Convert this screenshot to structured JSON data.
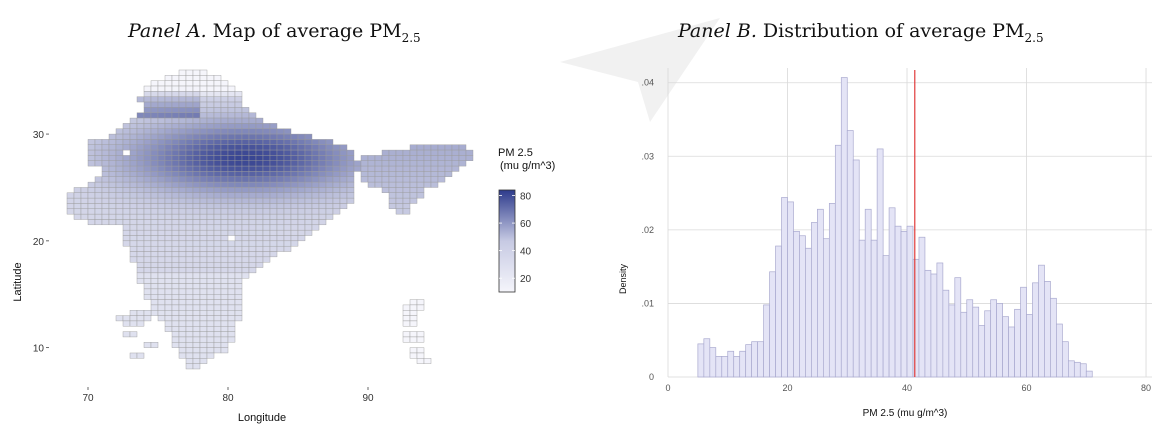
{
  "panel_a": {
    "title_italic": "Panel A.",
    "title_main": "Map of average PM",
    "title_sub": "2.5"
  },
  "panel_b": {
    "title_italic": "Panel B.",
    "title_main": "Distribution of average PM",
    "title_sub": "2.5"
  },
  "colors": {
    "map_low": "#f5f5fb",
    "map_high": "#2e3b8c",
    "map_mid": "#c7cae3",
    "hist_fill": "#e4e4f6",
    "hist_stroke": "#a9a9cf",
    "mean_line": "#e03a3a",
    "grid": "#d9d9d9"
  },
  "chart_data": [
    {
      "type": "heatmap",
      "xlabel": "Longitude",
      "ylabel": "Latitude",
      "xticks": [
        70,
        80,
        90
      ],
      "yticks": [
        10,
        20,
        30
      ],
      "xlim": [
        68,
        97
      ],
      "ylim": [
        6.5,
        36
      ],
      "legend": {
        "title_line1": "PM 2.5",
        "title_line2": "(mu g/m^3)",
        "ticks": [
          20,
          40,
          60,
          80
        ],
        "range": [
          10,
          84
        ],
        "placement": "right"
      },
      "grid": false
    },
    {
      "type": "bar",
      "xlabel": "PM 2.5 (mu g/m^3)",
      "ylabel": "Density",
      "xticks": [
        0,
        20,
        40,
        60,
        80
      ],
      "yticks": [
        0,
        0.01,
        0.02,
        0.03,
        0.04
      ],
      "ytick_labels": [
        "0",
        ".01",
        ".02",
        ".03",
        ".04"
      ],
      "xlim": [
        0,
        81
      ],
      "ylim": [
        0,
        0.042
      ],
      "bin_width": 1,
      "bin_start": 5,
      "values": [
        0.0045,
        0.0052,
        0.004,
        0.0028,
        0.0028,
        0.0035,
        0.0028,
        0.0035,
        0.0044,
        0.0048,
        0.0048,
        0.0098,
        0.0143,
        0.0178,
        0.0244,
        0.0238,
        0.0198,
        0.0192,
        0.0175,
        0.021,
        0.0228,
        0.0188,
        0.0236,
        0.0315,
        0.0407,
        0.0335,
        0.0295,
        0.0186,
        0.0228,
        0.0186,
        0.031,
        0.0165,
        0.023,
        0.0205,
        0.0198,
        0.0205,
        0.016,
        0.019,
        0.0145,
        0.014,
        0.0155,
        0.0118,
        0.0098,
        0.0135,
        0.0088,
        0.0105,
        0.0095,
        0.007,
        0.009,
        0.0105,
        0.01,
        0.0082,
        0.0068,
        0.0092,
        0.0122,
        0.0085,
        0.0128,
        0.0152,
        0.013,
        0.0107,
        0.0072,
        0.0048,
        0.0022,
        0.002,
        0.0018,
        0.0008
      ],
      "vline": 41.3,
      "grid": true
    }
  ]
}
